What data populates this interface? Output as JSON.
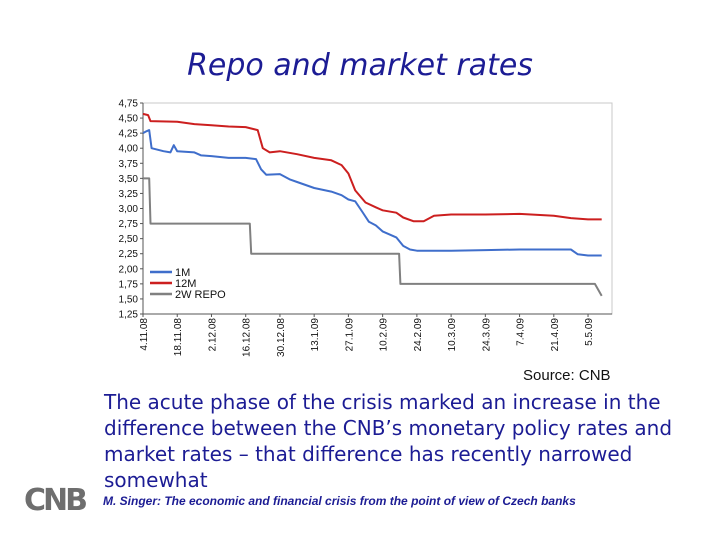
{
  "slide": {
    "title": "Repo and market rates",
    "source": "Source: CNB",
    "body_text": "The acute phase of the crisis marked an increase in the difference between the CNB’s monetary policy rates and market rates – that difference has recently narrowed somewhat",
    "footer": "M. Singer: The economic and financial crisis from the point of view of Czech banks",
    "logo_text": "CNB"
  },
  "colors": {
    "title": "#1c1c94",
    "series_1M": "#3f6ecb",
    "series_12M": "#cc1f1f",
    "series_repo": "#808080",
    "logo": "#6e6e6e"
  },
  "chart_data": {
    "type": "line",
    "title": "Repo and market rates",
    "xlabel": "",
    "ylabel": "",
    "ylim": [
      1.25,
      4.75
    ],
    "y_ticks": [
      "4,75",
      "4,50",
      "4,25",
      "4,00",
      "3,75",
      "3,50",
      "3,25",
      "3,00",
      "2,75",
      "2,50",
      "2,25",
      "2,00",
      "1,75",
      "1,50",
      "1,25"
    ],
    "x_ticks": [
      "4.11.08",
      "18.11.08",
      "2.12.08",
      "16.12.08",
      "30.12.08",
      "13.1.09",
      "27.1.09",
      "10.2.09",
      "24.2.09",
      "10.3.09",
      "24.3.09",
      "7.4.09",
      "21.4.09",
      "5.5.09"
    ],
    "x_range": [
      0,
      13.7
    ],
    "grid": false,
    "legend": "bottom-left inside",
    "series": [
      {
        "name": "1M",
        "color": "#3f6ecb",
        "points": [
          [
            0,
            4.25
          ],
          [
            0.1,
            4.28
          ],
          [
            0.18,
            4.3
          ],
          [
            0.25,
            4.0
          ],
          [
            0.6,
            3.95
          ],
          [
            0.8,
            3.93
          ],
          [
            0.9,
            4.05
          ],
          [
            1.0,
            3.95
          ],
          [
            1.5,
            3.93
          ],
          [
            1.7,
            3.88
          ],
          [
            2.0,
            3.87
          ],
          [
            2.5,
            3.84
          ],
          [
            3.0,
            3.84
          ],
          [
            3.3,
            3.82
          ],
          [
            3.45,
            3.65
          ],
          [
            3.6,
            3.56
          ],
          [
            4.0,
            3.57
          ],
          [
            4.3,
            3.48
          ],
          [
            4.5,
            3.44
          ],
          [
            5.0,
            3.34
          ],
          [
            5.5,
            3.28
          ],
          [
            5.8,
            3.22
          ],
          [
            6.0,
            3.15
          ],
          [
            6.2,
            3.12
          ],
          [
            6.4,
            2.95
          ],
          [
            6.6,
            2.78
          ],
          [
            6.8,
            2.72
          ],
          [
            7.0,
            2.62
          ],
          [
            7.2,
            2.57
          ],
          [
            7.4,
            2.52
          ],
          [
            7.6,
            2.38
          ],
          [
            7.8,
            2.32
          ],
          [
            8.0,
            2.3
          ],
          [
            8.5,
            2.3
          ],
          [
            9.0,
            2.3
          ],
          [
            10.0,
            2.31
          ],
          [
            11.0,
            2.32
          ],
          [
            12.0,
            2.32
          ],
          [
            12.5,
            2.32
          ],
          [
            12.7,
            2.24
          ],
          [
            13.0,
            2.22
          ],
          [
            13.4,
            2.22
          ]
        ]
      },
      {
        "name": "12M",
        "color": "#cc1f1f",
        "points": [
          [
            0,
            4.57
          ],
          [
            0.15,
            4.55
          ],
          [
            0.22,
            4.45
          ],
          [
            1.0,
            4.44
          ],
          [
            1.5,
            4.4
          ],
          [
            2.0,
            4.38
          ],
          [
            2.5,
            4.36
          ],
          [
            3.0,
            4.35
          ],
          [
            3.35,
            4.3
          ],
          [
            3.5,
            4.0
          ],
          [
            3.7,
            3.93
          ],
          [
            4.0,
            3.95
          ],
          [
            4.5,
            3.9
          ],
          [
            5.0,
            3.84
          ],
          [
            5.5,
            3.8
          ],
          [
            5.8,
            3.72
          ],
          [
            6.0,
            3.58
          ],
          [
            6.2,
            3.3
          ],
          [
            6.5,
            3.1
          ],
          [
            6.8,
            3.02
          ],
          [
            7.0,
            2.97
          ],
          [
            7.4,
            2.93
          ],
          [
            7.6,
            2.85
          ],
          [
            7.9,
            2.79
          ],
          [
            8.2,
            2.79
          ],
          [
            8.5,
            2.88
          ],
          [
            9.0,
            2.9
          ],
          [
            10.0,
            2.9
          ],
          [
            11.0,
            2.91
          ],
          [
            12.0,
            2.88
          ],
          [
            12.5,
            2.84
          ],
          [
            13.0,
            2.82
          ],
          [
            13.4,
            2.82
          ]
        ]
      },
      {
        "name": "2W REPO",
        "color": "#808080",
        "points": [
          [
            0,
            3.5
          ],
          [
            0.18,
            3.5
          ],
          [
            0.22,
            2.75
          ],
          [
            3.12,
            2.75
          ],
          [
            3.16,
            2.25
          ],
          [
            7.48,
            2.25
          ],
          [
            7.52,
            1.75
          ],
          [
            13.2,
            1.75
          ],
          [
            13.4,
            1.55
          ]
        ]
      }
    ]
  }
}
